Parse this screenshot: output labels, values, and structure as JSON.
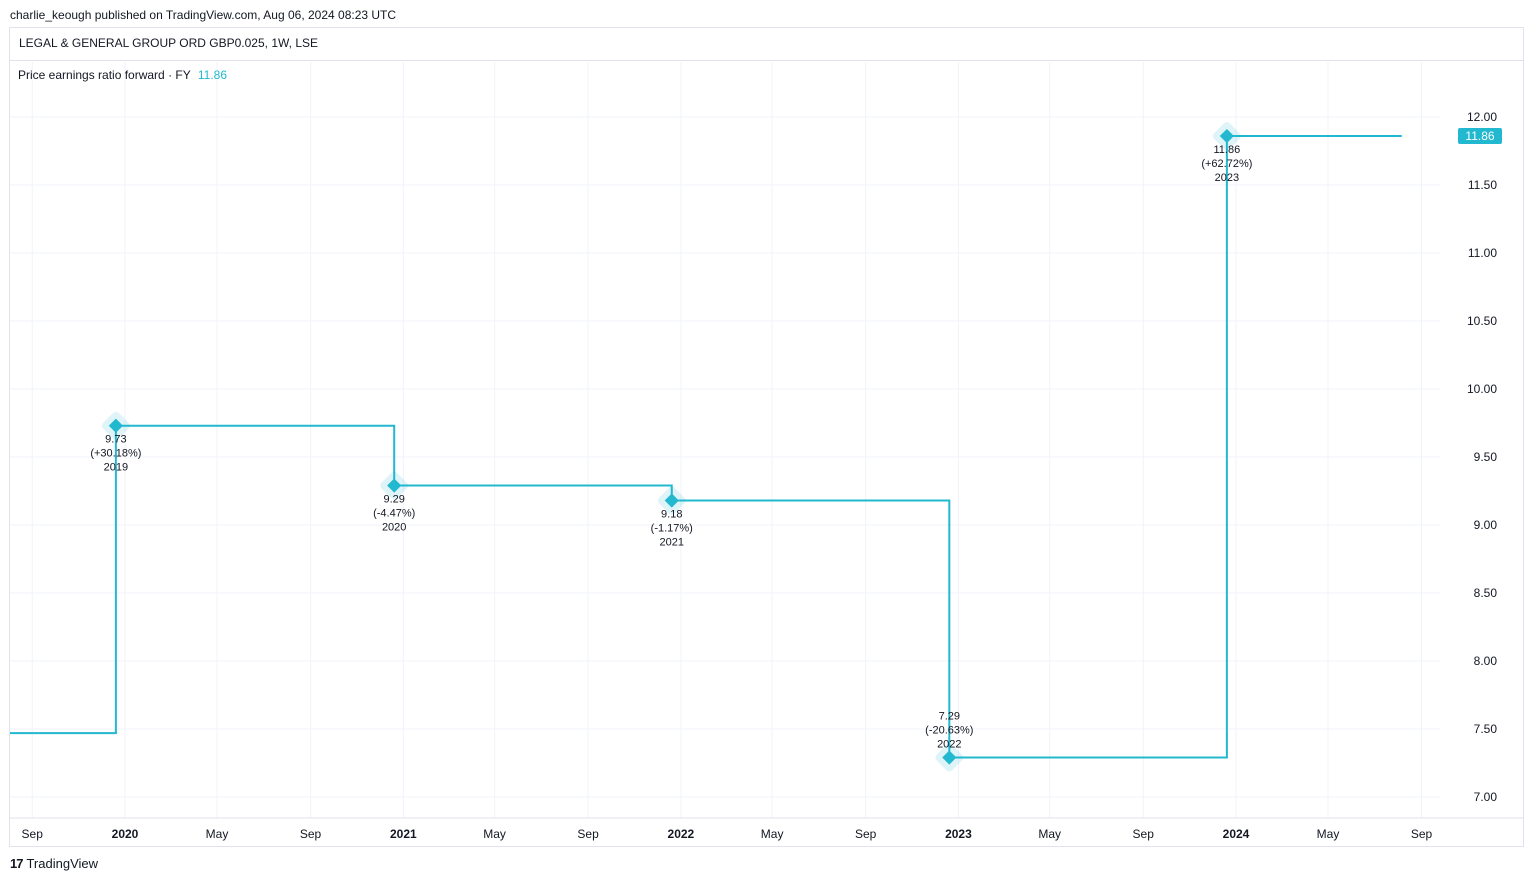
{
  "header": {
    "published": "charlie_keough published on TradingView.com, Aug 06, 2024 08:23 UTC",
    "symbol": "LEGAL & GENERAL GROUP ORD GBP0.025, 1W, LSE"
  },
  "legend": {
    "label": "Price earnings ratio forward · FY",
    "value": "11.86"
  },
  "footer": {
    "logo_glyph": "17",
    "brand": "TradingView"
  },
  "colors": {
    "series": "#22b8cf",
    "grid": "#f0f3fa",
    "axis_text": "#131722"
  },
  "chart_data": {
    "type": "line",
    "step": true,
    "title": "Price earnings ratio forward · FY",
    "ylim": [
      6.8,
      12.5
    ],
    "yticks": [
      "7.00",
      "7.50",
      "8.00",
      "8.50",
      "9.00",
      "9.50",
      "10.00",
      "10.50",
      "11.00",
      "11.50",
      "12.00"
    ],
    "xticks": [
      {
        "label": "Sep",
        "date": "2019-09-01",
        "major": false
      },
      {
        "label": "2020",
        "date": "2020-01-01",
        "major": true
      },
      {
        "label": "May",
        "date": "2020-05-01",
        "major": false
      },
      {
        "label": "Sep",
        "date": "2020-09-01",
        "major": false
      },
      {
        "label": "2021",
        "date": "2021-01-01",
        "major": true
      },
      {
        "label": "May",
        "date": "2021-05-01",
        "major": false
      },
      {
        "label": "Sep",
        "date": "2021-09-01",
        "major": false
      },
      {
        "label": "2022",
        "date": "2022-01-01",
        "major": true
      },
      {
        "label": "May",
        "date": "2022-05-01",
        "major": false
      },
      {
        "label": "Sep",
        "date": "2022-09-01",
        "major": false
      },
      {
        "label": "2023",
        "date": "2023-01-01",
        "major": true
      },
      {
        "label": "May",
        "date": "2023-05-01",
        "major": false
      },
      {
        "label": "Sep",
        "date": "2023-09-01",
        "major": false
      },
      {
        "label": "2024",
        "date": "2024-01-01",
        "major": true
      },
      {
        "label": "May",
        "date": "2024-05-01",
        "major": false
      },
      {
        "label": "Sep",
        "date": "2024-09-01",
        "major": false
      }
    ],
    "series": [
      {
        "prior_value": 7.47,
        "points": [
          {
            "date": "2019-12-20",
            "value": 9.73,
            "change": "(+30.18%)",
            "year": "2019",
            "label": "9.73"
          },
          {
            "date": "2020-12-20",
            "value": 9.29,
            "change": "(-4.47%)",
            "year": "2020",
            "label": "9.29"
          },
          {
            "date": "2021-12-20",
            "value": 9.18,
            "change": "(-1.17%)",
            "year": "2021",
            "label": "9.18"
          },
          {
            "date": "2022-12-20",
            "value": 7.29,
            "change": "(-20.63%)",
            "year": "2022",
            "label": "7.29"
          },
          {
            "date": "2023-12-20",
            "value": 11.86,
            "change": "(+62.72%)",
            "year": "2023",
            "label": "11.86"
          }
        ],
        "last_date": "2024-08-06",
        "last_label": "11.86"
      }
    ]
  }
}
